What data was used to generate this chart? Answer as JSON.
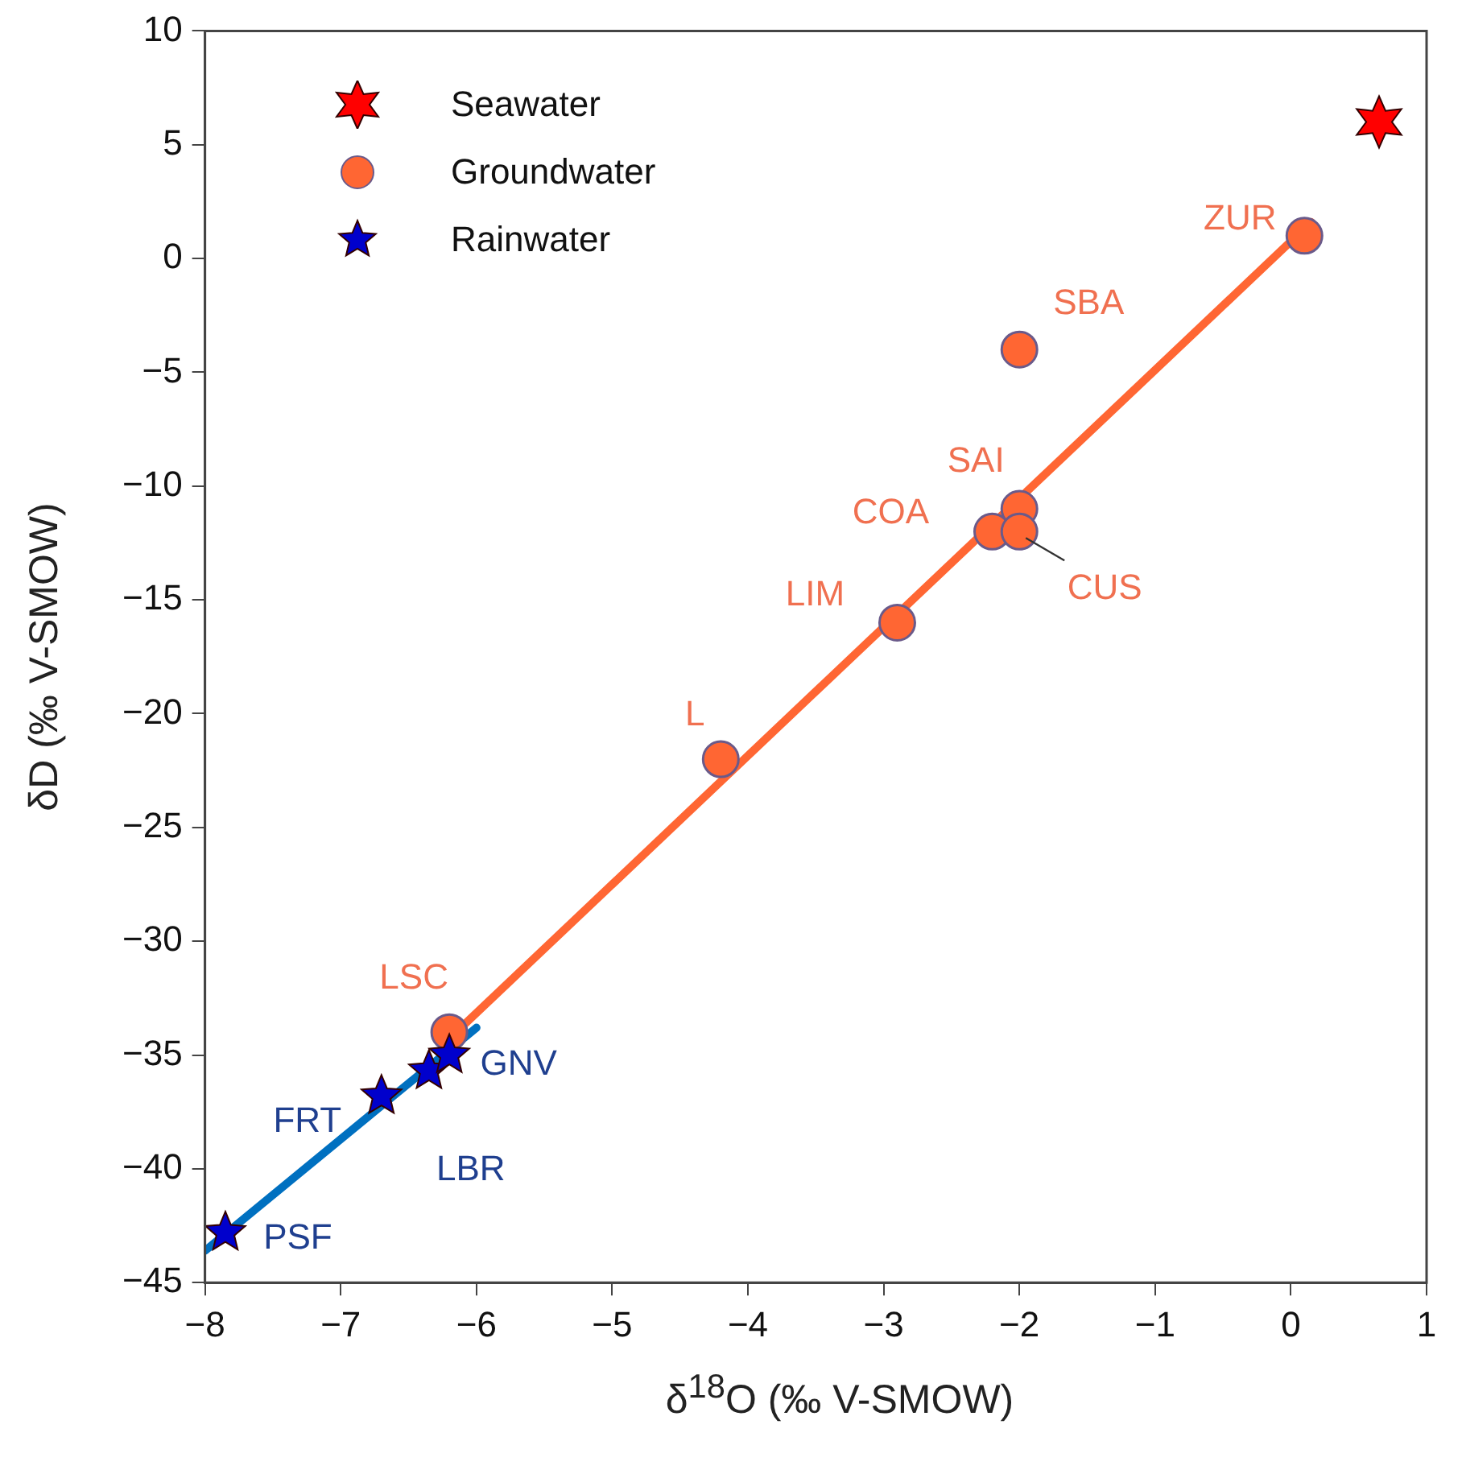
{
  "chart_data": {
    "type": "scatter",
    "xlabel": "δ$^{18}$O (‰ V-SMOW)",
    "ylabel": "δD (‰ V-SMOW)",
    "xlim": [
      -8,
      1
    ],
    "xticks": [
      {
        "value": -8,
        "label": "−8"
      },
      {
        "value": -7,
        "label": "−7"
      },
      {
        "value": -6,
        "label": "−6"
      },
      {
        "value": -5,
        "label": "−5"
      },
      {
        "value": -4,
        "label": "−4"
      },
      {
        "value": -3,
        "label": "−3"
      },
      {
        "value": -2,
        "label": "−2"
      },
      {
        "value": -1,
        "label": "−1"
      },
      0,
      1
    ],
    "ylim": [
      -45,
      10
    ],
    "yticks": [
      {
        "value": -45,
        "label": "−45"
      },
      {
        "value": -40,
        "label": "−40"
      },
      {
        "value": -35,
        "label": "−35"
      },
      {
        "value": -30,
        "label": "−30"
      },
      {
        "value": -25,
        "label": "−25"
      },
      {
        "value": -20,
        "label": "−20"
      },
      {
        "value": -15,
        "label": "−15"
      },
      {
        "value": -10,
        "label": "−10"
      },
      {
        "value": -5,
        "label": "−5"
      },
      0,
      5,
      10
    ],
    "grid": false,
    "legend": "top left",
    "series": [
      {
        "type": "line",
        "color": "#ff6633",
        "x": [
          -6.15,
          0.15
        ],
        "values": [
          -34,
          1.6
        ],
        "marker": "none"
      },
      {
        "type": "line",
        "color": "#0070c0",
        "x": [
          -8,
          -6
        ],
        "values": [
          -43.6,
          -33.8
        ],
        "marker": "none"
      },
      {
        "name": "Seawater",
        "color": "#ff0000",
        "marker": "star",
        "x": [
          0.65
        ],
        "values": [
          6
        ]
      },
      {
        "name": "Groundwater",
        "color": "#ff6633",
        "marker": "circle",
        "x": [
          0.1,
          -2,
          -2,
          -2.2,
          -2,
          -2.9,
          -4.2,
          -6.2
        ],
        "values": [
          1,
          -4,
          -11,
          -12,
          -12,
          -16,
          -22,
          -34
        ]
      },
      {
        "name": "Rainwater",
        "color": "#0000cc",
        "marker": "star",
        "x": [
          -6.7,
          -6.35,
          -6.2,
          -7.85
        ],
        "values": [
          -36.8,
          -35.7,
          -35,
          -42.8
        ]
      }
    ],
    "annotations": [
      {
        "text": "ZUR",
        "x": 0.1,
        "y": 1
      },
      {
        "text": "SBA",
        "x": -2,
        "y": -4
      },
      {
        "text": "SAI",
        "x": -2,
        "y": -11
      },
      {
        "text": "COA",
        "x": -2.2,
        "y": -12
      },
      {
        "text": "CUS",
        "x": -2,
        "y": -12
      },
      {
        "text": "LIM",
        "x": -2.9,
        "y": -16
      },
      {
        "text": "L",
        "x": -4.2,
        "y": -22
      },
      {
        "text": "LSC",
        "x": -6.2,
        "y": -34
      },
      {
        "text": "FRT",
        "x": -6.7,
        "y": -36.8
      },
      {
        "text": "LBR",
        "x": -6.35,
        "y": -35.7
      },
      {
        "text": "GNV",
        "x": -6.2,
        "y": -35
      },
      {
        "text": "PSF",
        "x": -7.85,
        "y": -42.8
      }
    ]
  }
}
